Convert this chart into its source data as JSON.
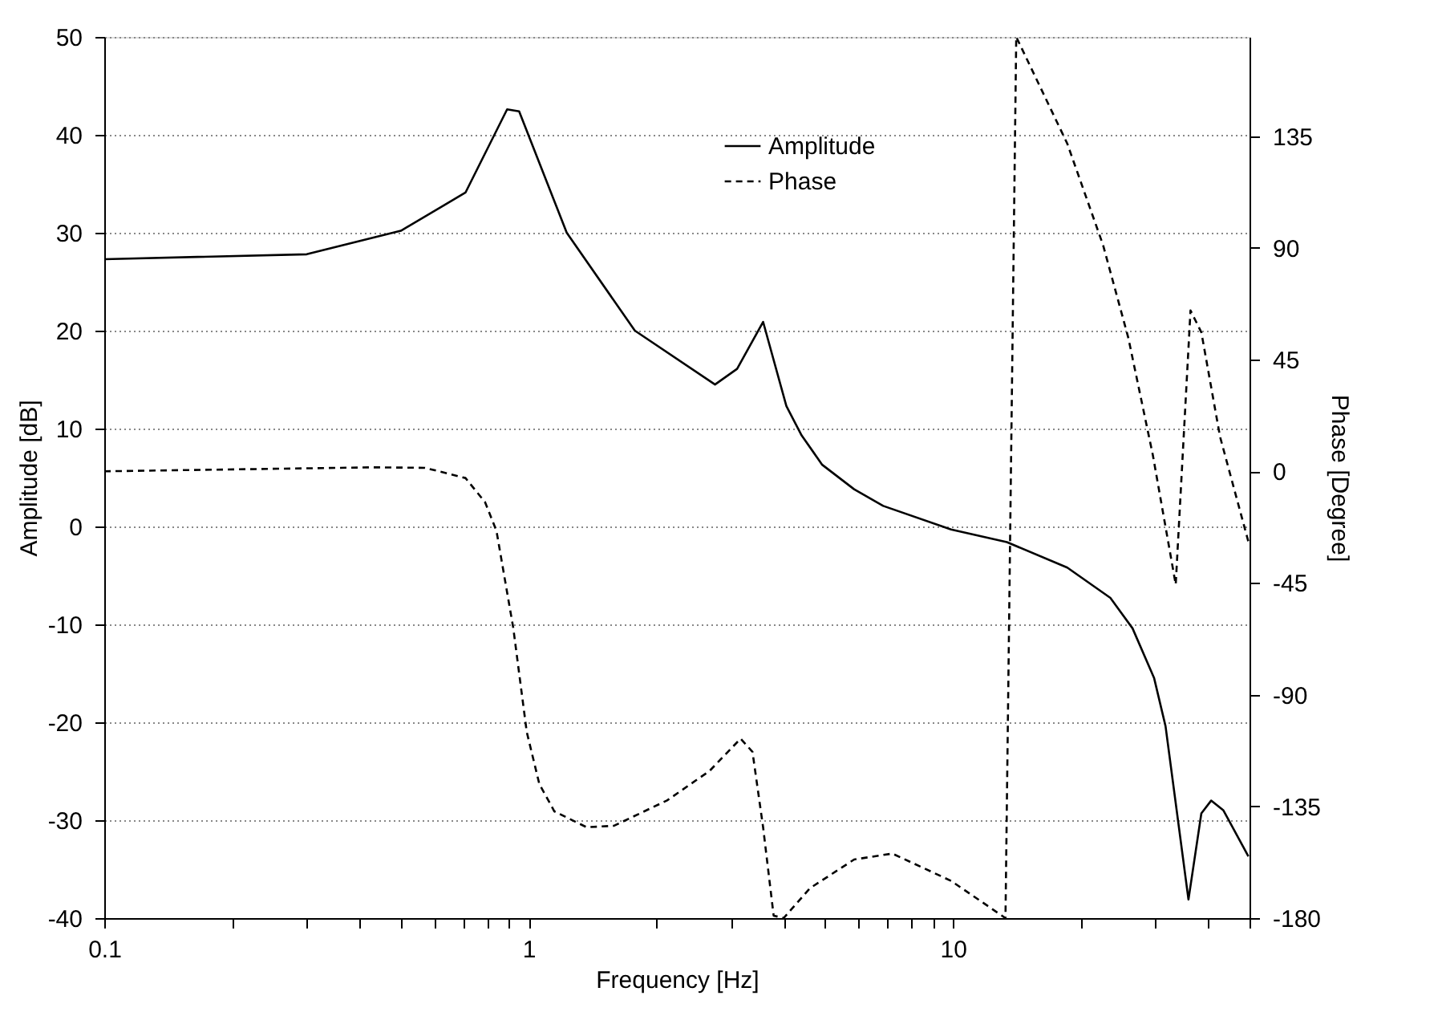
{
  "chart_data": {
    "type": "line",
    "xlabel": "Frequency [Hz]",
    "ylabel": "Amplitude [dB]",
    "y2label": "Phase [Degree]",
    "log": "x",
    "grid": "y",
    "legend": "top right",
    "marker": "none",
    "xlim": [
      0.1,
      50
    ],
    "xticks": [
      0.1,
      {
        "value": 0.2,
        "label": null
      },
      {
        "value": 0.3,
        "label": null
      },
      {
        "value": 0.4,
        "label": null
      },
      {
        "value": 0.5,
        "label": null
      },
      {
        "value": 0.6,
        "label": null
      },
      {
        "value": 0.7,
        "label": null
      },
      {
        "value": 0.8,
        "label": null
      },
      {
        "value": 0.9,
        "label": null
      },
      1,
      {
        "value": 2,
        "label": null
      },
      {
        "value": 3,
        "label": null
      },
      {
        "value": 4,
        "label": null
      },
      {
        "value": 5,
        "label": null
      },
      {
        "value": 6,
        "label": null
      },
      {
        "value": 7,
        "label": null
      },
      {
        "value": 8,
        "label": null
      },
      {
        "value": 9,
        "label": null
      },
      10,
      {
        "value": 20,
        "label": null
      },
      {
        "value": 30,
        "label": null
      },
      {
        "value": 40,
        "label": null
      },
      {
        "value": 50,
        "label": null
      }
    ],
    "ylim": [
      -40,
      50
    ],
    "yticks": [
      -40,
      -30,
      -20,
      -10,
      0,
      10,
      20,
      30,
      40,
      50
    ],
    "y2lim": [
      -180,
      175
    ],
    "y2ticks": [
      -180,
      -135,
      -90,
      -45,
      0,
      45,
      90,
      135
    ],
    "series": [
      {
        "name": "Amplitude",
        "color": "#000000",
        "line_style": "solid",
        "x": [
          0.1,
          0.3,
          0.5,
          0.71,
          0.89,
          0.95,
          1.23,
          1.78,
          2.75,
          3.1,
          3.57,
          4.05,
          4.4,
          4.92,
          5.85,
          6.85,
          9.9,
          13.4,
          18.6,
          23.5,
          26.5,
          29.8,
          31.7,
          35.9,
          38.5,
          40.6,
          43.4,
          49.7
        ],
        "values": [
          27.3,
          27.8,
          30.2,
          34.1,
          42.6,
          42.4,
          30,
          20,
          14.5,
          16.1,
          20.9,
          12.3,
          9.3,
          6.3,
          3.8,
          2.1,
          -0.3,
          -1.6,
          -4.2,
          -7.3,
          -10.4,
          -15.5,
          -20.4,
          -38.1,
          -29.3,
          -28,
          -29,
          -33.7
        ]
      },
      {
        "name": "Phase",
        "color": "#000000",
        "line_style": "dashed",
        "axis": "y2",
        "x": [
          0.1,
          0.43,
          0.57,
          0.71,
          0.79,
          0.84,
          0.92,
          0.99,
          1.06,
          1.15,
          1.37,
          1.59,
          2.12,
          2.67,
          3.16,
          3.37,
          3.57,
          3.78,
          3.99,
          4.6,
          5.85,
          7.2,
          9.9,
          13.3,
          14.1,
          18.6,
          22.6,
          25.9,
          29.6,
          33.5,
          36.3,
          38.5,
          42.6,
          49.7
        ],
        "values": [
          0,
          1.6,
          1.4,
          -2.7,
          -12.5,
          -24,
          -63,
          -105,
          -126,
          -137,
          -143.4,
          -142.8,
          -132.6,
          -120.7,
          -107.7,
          -113,
          -143.4,
          -179,
          -180,
          -168,
          -156.4,
          -154,
          -165,
          -180,
          175,
          132,
          91,
          53.8,
          6.4,
          -45.6,
          64.8,
          56,
          14,
          -28.4
        ]
      }
    ]
  }
}
